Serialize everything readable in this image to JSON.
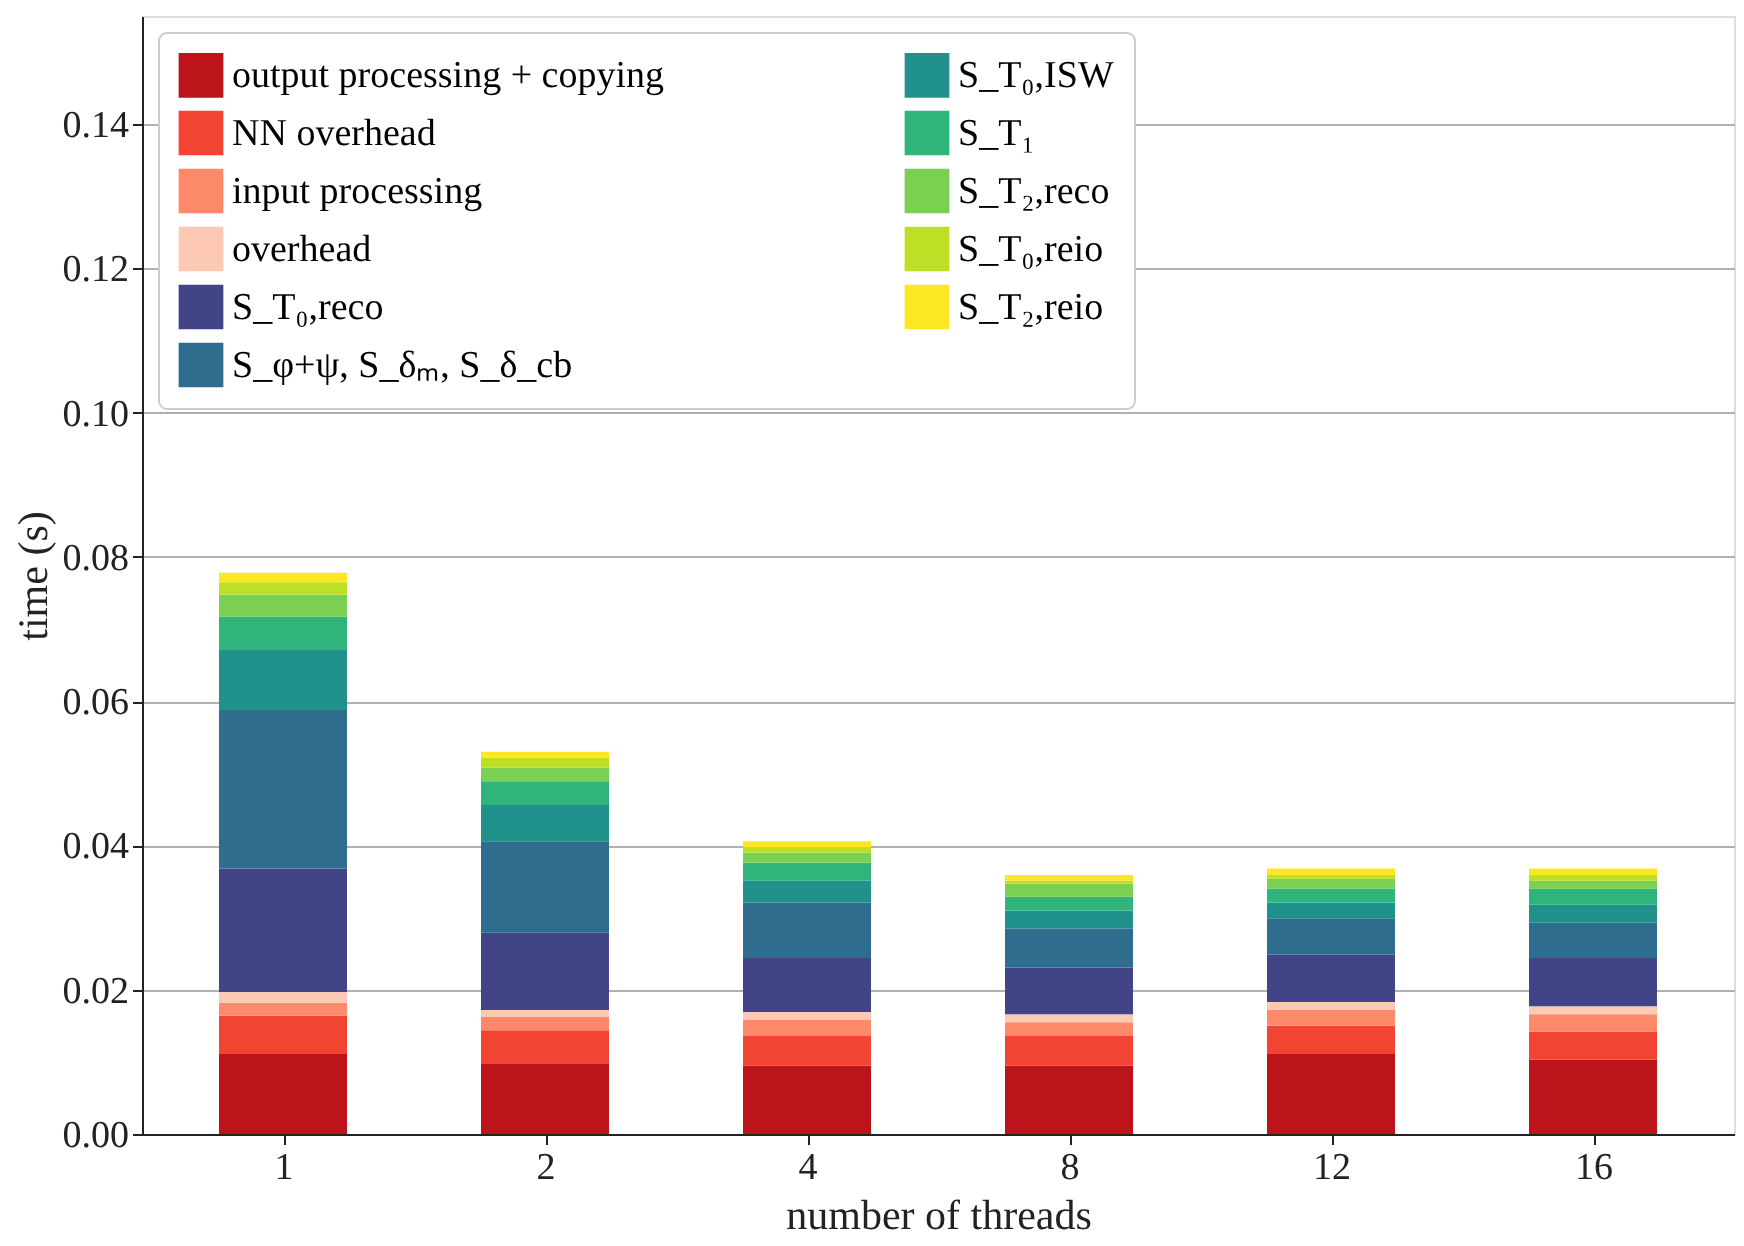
{
  "chart_data": {
    "type": "bar",
    "stacked": true,
    "xlabel": "number of threads",
    "ylabel": "time (s)",
    "categories": [
      "1",
      "2",
      "4",
      "8",
      "12",
      "16"
    ],
    "series": [
      {
        "name": "output processing + copying",
        "color": "#bc141a",
        "values": [
          0.0111,
          0.0097,
          0.0095,
          0.0095,
          0.0111,
          0.0103
        ]
      },
      {
        "name": "NN overhead",
        "color": "#f14432",
        "values": [
          0.0053,
          0.0047,
          0.0041,
          0.0041,
          0.0039,
          0.0039
        ]
      },
      {
        "name": "input processing",
        "color": "#fc8a6a",
        "values": [
          0.0018,
          0.0019,
          0.0022,
          0.0019,
          0.0022,
          0.0024
        ]
      },
      {
        "name": "overhead",
        "color": "#fdc9b4",
        "values": [
          0.0015,
          0.0009,
          0.0011,
          0.0011,
          0.0011,
          0.0011
        ]
      },
      {
        "name": "S_T₀,reco",
        "color": "#414487",
        "values": [
          0.0171,
          0.0107,
          0.0075,
          0.0065,
          0.0066,
          0.0067
        ]
      },
      {
        "name": "S_φ+ψ, S_δₘ, S_δ_cb",
        "color": "#2e6d8e",
        "values": [
          0.022,
          0.0127,
          0.0077,
          0.0054,
          0.005,
          0.0049
        ]
      },
      {
        "name": "S_T₀,ISW",
        "color": "#21918c",
        "values": [
          0.0083,
          0.005,
          0.003,
          0.0025,
          0.0022,
          0.0025
        ]
      },
      {
        "name": "S_T₁",
        "color": "#2fb47c",
        "values": [
          0.0046,
          0.0033,
          0.0025,
          0.0019,
          0.0019,
          0.0022
        ]
      },
      {
        "name": "S_T₂,reco",
        "color": "#7ad151",
        "values": [
          0.0031,
          0.0019,
          0.0014,
          0.0018,
          0.0014,
          0.0011
        ]
      },
      {
        "name": "S_T₀,reio",
        "color": "#bddf26",
        "values": [
          0.0017,
          0.0014,
          0.0008,
          0.0004,
          0.0005,
          0.0008
        ]
      },
      {
        "name": "S_T₂,reio",
        "color": "#fde725",
        "values": [
          0.0013,
          0.0008,
          0.0008,
          0.0008,
          0.0009,
          0.0009
        ]
      }
    ],
    "ylim": [
      0,
      0.155
    ],
    "yticks": [
      {
        "value": 0,
        "label": "0.00"
      },
      {
        "value": 0.02,
        "label": "0.02"
      },
      {
        "value": 0.04,
        "label": "0.04"
      },
      {
        "value": 0.06,
        "label": "0.06"
      },
      {
        "value": 0.08,
        "label": "0.08"
      },
      {
        "value": 0.1,
        "label": "0.10"
      },
      {
        "value": 0.12,
        "label": "0.12"
      },
      {
        "value": 0.14,
        "label": "0.14"
      }
    ],
    "grid": "y",
    "legend": "top"
  }
}
